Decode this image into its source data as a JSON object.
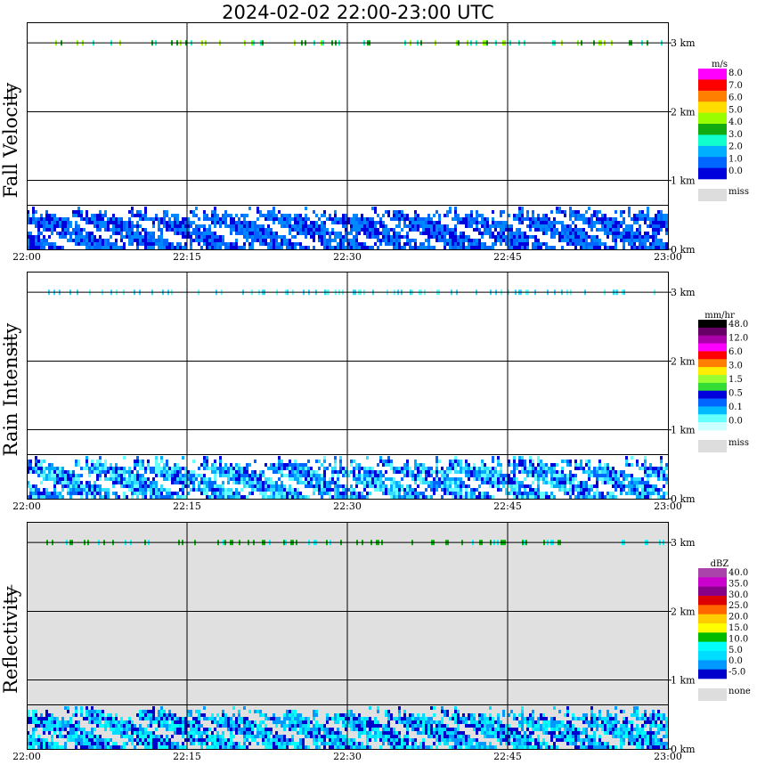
{
  "title": "2024-02-02   22:00-23:00 UTC",
  "x_ticks": [
    "22:00",
    "22:15",
    "22:30",
    "22:45",
    "23:00"
  ],
  "height_ticks": [
    "0 km",
    "1 km",
    "2 km",
    "3 km"
  ],
  "colors": {
    "panel_bg_reflectivity": "#e0e0e0",
    "grid": "#000000",
    "miss": "#dddddd"
  },
  "chart_data": [
    {
      "type": "heatmap",
      "title": "Fall Velocity",
      "xlabel": "",
      "ylabel": "Fall Velocity",
      "x_range": [
        "22:00",
        "23:00"
      ],
      "y_range_km": [
        0,
        3.3
      ],
      "colorbar": {
        "unit": "m/s",
        "labels": [
          "8.0",
          "7.0",
          "6.0",
          "5.0",
          "4.0",
          "3.0",
          "2.0",
          "1.0",
          "0.0"
        ],
        "colors": [
          "#ff00ff",
          "#ff0000",
          "#ff7f00",
          "#ffdd00",
          "#99ff00",
          "#11aa11",
          "#11ffcc",
          "#00b0ff",
          "#0066ff",
          "#0000dd"
        ],
        "missing_label": "miss",
        "missing_color": "#dddddd"
      },
      "echo_top_km": 0.65,
      "echo_palette": [
        "#0000dd",
        "#0066ff",
        "#0088ff"
      ],
      "band_km": 3.0,
      "band_palette": [
        "#11aa11",
        "#99ff00",
        "#11ffcc"
      ]
    },
    {
      "type": "heatmap",
      "title": "Rain Intensity",
      "xlabel": "",
      "ylabel": "Rain Intensity",
      "x_range": [
        "22:00",
        "23:00"
      ],
      "y_range_km": [
        0,
        3.3
      ],
      "colorbar": {
        "unit": "mm/hr",
        "labels": [
          "48.0",
          "12.0",
          "6.0",
          "3.0",
          "1.5",
          "0.5",
          "0.1",
          "0.0"
        ],
        "colors": [
          "#000000",
          "#660066",
          "#aa00aa",
          "#ff00ff",
          "#ff0000",
          "#ff7f00",
          "#ffee00",
          "#99ff33",
          "#33dd33",
          "#0000dd",
          "#0066ff",
          "#00bbff",
          "#66ffff",
          "#ccffff"
        ],
        "missing_label": "miss",
        "missing_color": "#dddddd"
      },
      "echo_top_km": 0.65,
      "echo_palette": [
        "#66ffff",
        "#33ddff",
        "#00aaff",
        "#0066ff",
        "#0000dd"
      ],
      "band_km": 3.0,
      "band_palette": [
        "#66ffff",
        "#33ddff"
      ]
    },
    {
      "type": "heatmap",
      "title": "Reflectivity",
      "xlabel": "",
      "ylabel": "Reflectivity",
      "x_range": [
        "22:00",
        "23:00"
      ],
      "y_range_km": [
        0,
        3.3
      ],
      "colorbar": {
        "unit": "dBZ",
        "labels": [
          "40.0",
          "35.0",
          "30.0",
          "25.0",
          "20.0",
          "15.0",
          "10.0",
          "5.0",
          "0.0",
          "-5.0"
        ],
        "colors": [
          "#aa44aa",
          "#cc00cc",
          "#880088",
          "#dd0000",
          "#ff6600",
          "#ffcc00",
          "#ffff00",
          "#00bb00",
          "#00ffff",
          "#00ddff",
          "#0099ff",
          "#0000cc"
        ],
        "missing_label": "none",
        "missing_color": "#dddddd"
      },
      "echo_top_km": 0.65,
      "echo_palette": [
        "#0000cc",
        "#0099ff",
        "#00ddff",
        "#00ffff"
      ],
      "band_km": 3.0,
      "band_palette": [
        "#00bb00",
        "#00ffff",
        "#11aa11"
      ]
    }
  ]
}
